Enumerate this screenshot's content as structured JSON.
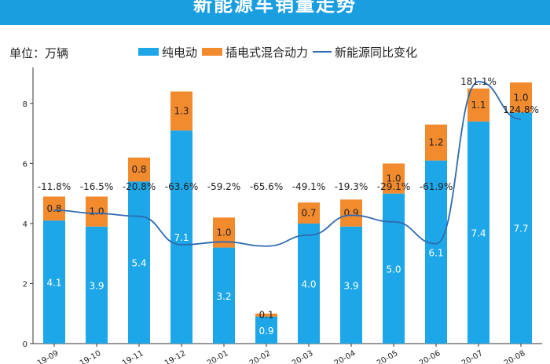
{
  "page": {
    "title": "新能源车销量走势",
    "unit_label": "单位：万辆",
    "banner_color": "#1a9ee0"
  },
  "chart_data": {
    "type": "bar",
    "stacked": true,
    "categories": [
      "2019-09",
      "2019-10",
      "2019-11",
      "2019-12",
      "2020-01",
      "2020-02",
      "2020-03",
      "2020-04",
      "2020-05",
      "2020-06",
      "2020-07",
      "2020-08"
    ],
    "tick_labels": [
      "19-09",
      "19-10",
      "19-11",
      "19-12",
      "20-01",
      "20-02",
      "20-03",
      "20-04",
      "20-05",
      "20-06",
      "20-07",
      "20-08"
    ],
    "series": [
      {
        "name": "纯电动",
        "values": [
          4.1,
          3.9,
          5.4,
          7.1,
          3.2,
          0.9,
          4.0,
          3.9,
          5.0,
          6.1,
          7.4,
          7.7
        ],
        "color": "#1ea7e8"
      },
      {
        "name": "插电式混合动力",
        "values": [
          0.8,
          1.0,
          0.8,
          1.3,
          1.0,
          0.1,
          0.7,
          0.9,
          1.0,
          1.2,
          1.1,
          1.0
        ],
        "color": "#f28a2e"
      }
    ],
    "line_series": {
      "name": "新能源同比变化",
      "values": [
        -11.8,
        -16.5,
        -20.8,
        -63.6,
        -59.2,
        -65.6,
        -49.1,
        -19.3,
        -29.1,
        -61.9,
        181.1,
        124.8
      ],
      "labels": [
        "-11.8%",
        "-16.5%",
        "-20.8%",
        "-63.6%",
        "-59.2%",
        "-65.6%",
        "-49.1%",
        "-19.3%",
        "-29.1%",
        "-61.9%",
        "181.1%",
        "124.8%"
      ],
      "color": "#2e6ab0"
    },
    "yticks": [
      0,
      2,
      4,
      6,
      8
    ],
    "ylim": [
      0,
      9.2
    ],
    "grid": false,
    "legend_position": "top"
  }
}
